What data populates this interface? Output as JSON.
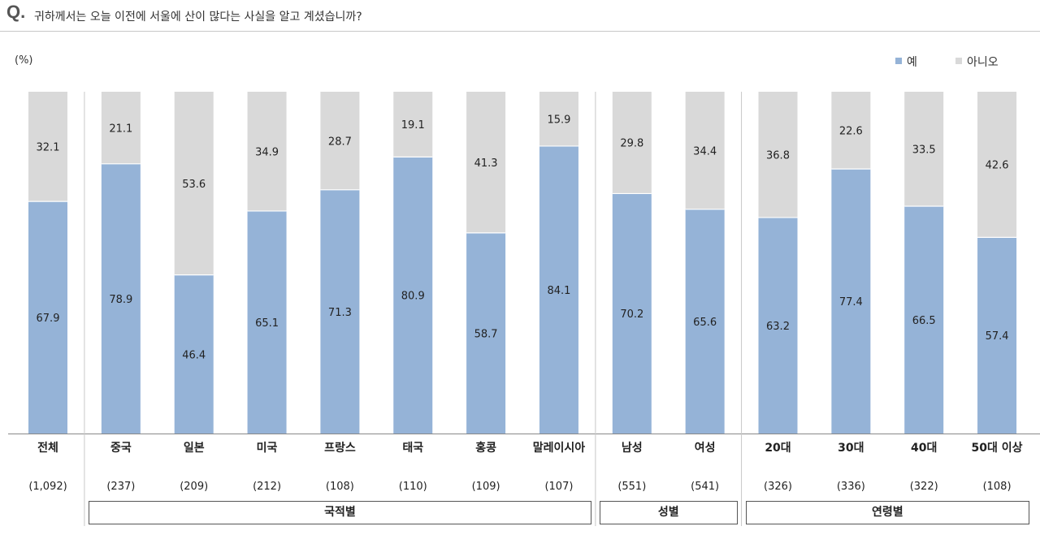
{
  "question": {
    "mark": "Q.",
    "text": "귀하께서는 오늘 이전에 서울에 산이 많다는 사실을 알고 계셨습니까?"
  },
  "colors": {
    "yes": "#95b3d7",
    "no": "#d9d9d9"
  },
  "chart_data": {
    "type": "bar",
    "stacked": true,
    "unit_label": "(%)",
    "ylim": [
      0,
      100
    ],
    "grid": false,
    "legend_position": "top-right",
    "categories": [
      "전체",
      "중국",
      "일본",
      "미국",
      "프랑스",
      "태국",
      "홍콩",
      "말레이시아",
      "남성",
      "여성",
      "20대",
      "30대",
      "40대",
      "50대 이상"
    ],
    "sample_sizes": [
      "(1,092)",
      "(237)",
      "(209)",
      "(212)",
      "(108)",
      "(110)",
      "(109)",
      "(107)",
      "(551)",
      "(541)",
      "(326)",
      "(336)",
      "(322)",
      "(108)"
    ],
    "series": [
      {
        "name": "예",
        "values": [
          67.9,
          78.9,
          46.4,
          65.1,
          71.3,
          80.9,
          58.7,
          84.1,
          70.2,
          65.6,
          63.2,
          77.4,
          66.5,
          57.4
        ]
      },
      {
        "name": "아니오",
        "values": [
          32.1,
          21.1,
          53.6,
          34.9,
          28.7,
          19.1,
          41.3,
          15.9,
          29.8,
          34.4,
          36.8,
          22.6,
          33.5,
          42.6
        ]
      }
    ],
    "value_labels": {
      "yes": [
        "67.9",
        "78.9",
        "46.4",
        "65.1",
        "71.3",
        "80.9",
        "58.7",
        "84.1",
        "70.2",
        "65.6",
        "63.2",
        "77.4",
        "66.5",
        "57.4"
      ],
      "no": [
        "32.1",
        "21.1",
        "53.6",
        "34.9",
        "28.7",
        "19.1",
        "41.3",
        "15.9",
        "29.8",
        "34.4",
        "36.8",
        "22.6",
        "33.5",
        "42.6"
      ]
    },
    "groups": [
      {
        "label": "국적별",
        "from": 1,
        "to": 7
      },
      {
        "label": "성별",
        "from": 8,
        "to": 9
      },
      {
        "label": "연령별",
        "from": 10,
        "to": 13
      }
    ]
  }
}
